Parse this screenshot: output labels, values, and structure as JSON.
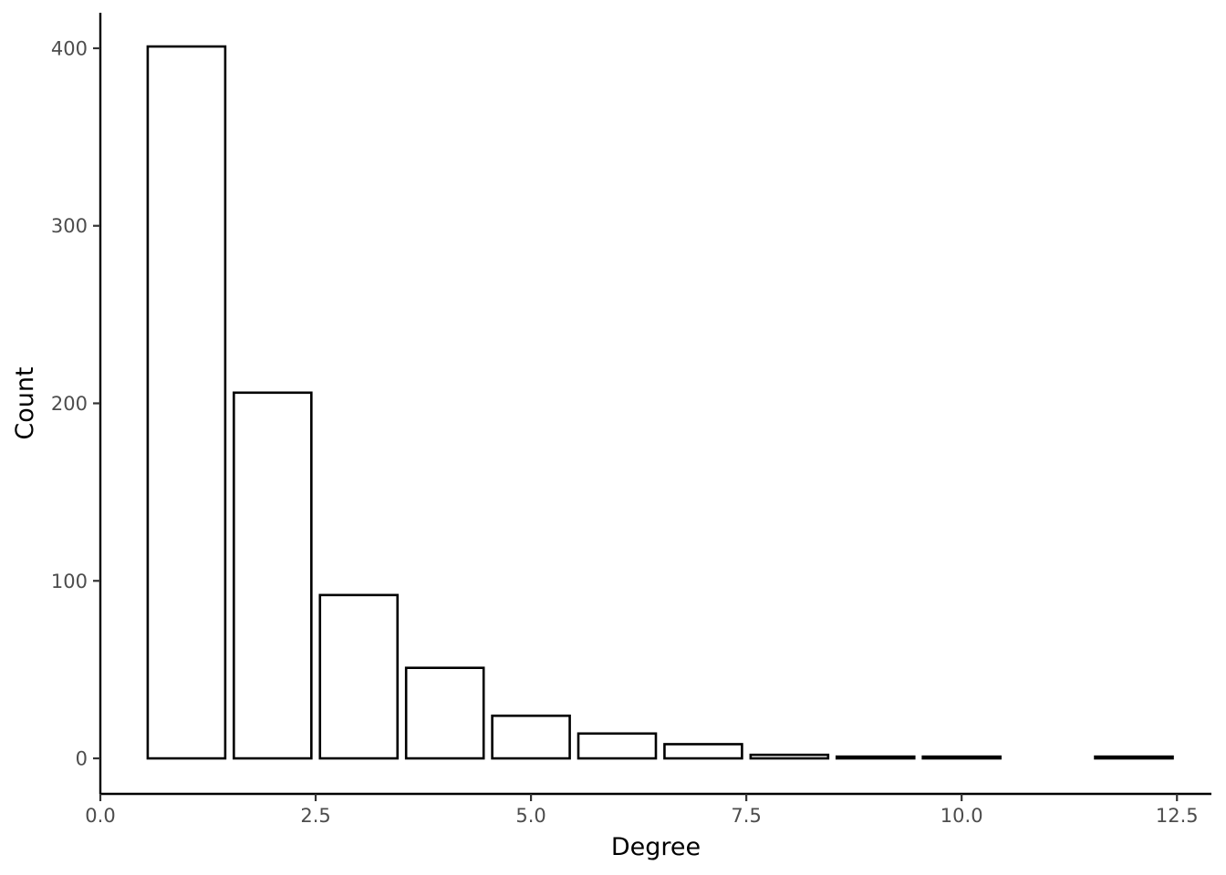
{
  "chart_data": {
    "type": "bar",
    "title": "",
    "xlabel": "Degree",
    "ylabel": "Count",
    "xlim": [
      0,
      12.9
    ],
    "ylim": [
      -20,
      420
    ],
    "x_ticks": [
      {
        "value": 0,
        "label": "0.0"
      },
      {
        "value": 2.5,
        "label": "2.5"
      },
      {
        "value": 5,
        "label": "5.0"
      },
      {
        "value": 7.5,
        "label": "7.5"
      },
      {
        "value": 10,
        "label": "10.0"
      },
      {
        "value": 12.5,
        "label": "12.5"
      }
    ],
    "y_ticks": [
      {
        "value": 0,
        "label": "0"
      },
      {
        "value": 100,
        "label": "100"
      },
      {
        "value": 200,
        "label": "200"
      },
      {
        "value": 300,
        "label": "300"
      },
      {
        "value": 400,
        "label": "400"
      }
    ],
    "bar_width": 0.9,
    "bars": [
      {
        "x": 1,
        "value": 401
      },
      {
        "x": 2,
        "value": 206
      },
      {
        "x": 3,
        "value": 92
      },
      {
        "x": 4,
        "value": 51
      },
      {
        "x": 5,
        "value": 24
      },
      {
        "x": 6,
        "value": 14
      },
      {
        "x": 7,
        "value": 8
      },
      {
        "x": 8,
        "value": 2
      },
      {
        "x": 9,
        "value": 1
      },
      {
        "x": 10,
        "value": 1
      },
      {
        "x": 12,
        "value": 1
      }
    ],
    "grid": false,
    "legend": "none",
    "colors": {
      "bar_fill": "#ffffff",
      "bar_outline": "#000000"
    }
  }
}
